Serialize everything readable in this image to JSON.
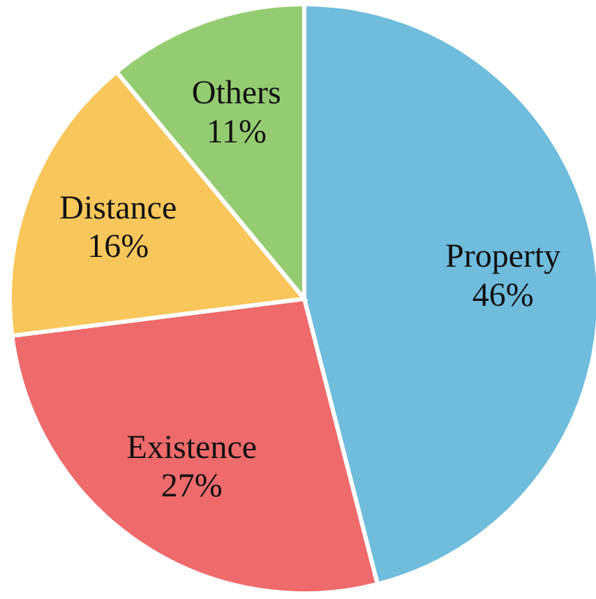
{
  "chart_data": {
    "type": "pie",
    "categories": [
      "Property",
      "Existence",
      "Distance",
      "Others"
    ],
    "values": [
      46,
      27,
      16,
      11
    ],
    "colors": [
      "#6fbcdd",
      "#ef6a6b",
      "#f8c65b",
      "#95cc72"
    ],
    "value_labels": [
      "46%",
      "27%",
      "16%",
      "11%"
    ]
  }
}
